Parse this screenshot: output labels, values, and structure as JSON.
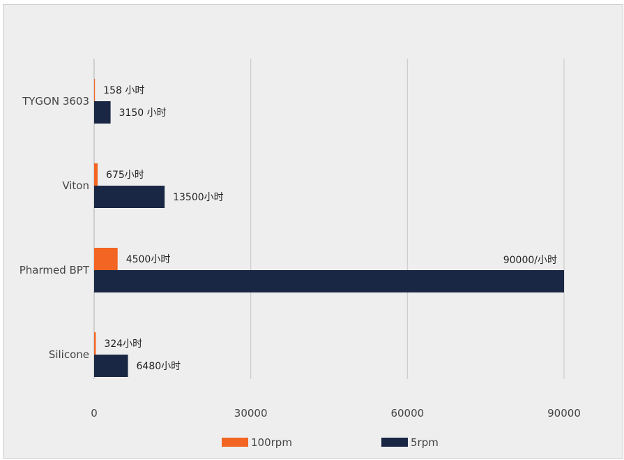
{
  "chart_data": {
    "type": "bar",
    "orientation": "horizontal",
    "categories": [
      "TYGON 3603",
      "Viton",
      "Pharmed BPT",
      "Silicone"
    ],
    "series": [
      {
        "name": "100rpm",
        "color": "#f26522",
        "values": [
          158,
          675,
          4500,
          324
        ],
        "data_labels": [
          "158 小时",
          "675小时",
          "4500小时",
          "324小时"
        ]
      },
      {
        "name": "5rpm",
        "color": "#1a2744",
        "values": [
          3150,
          13500,
          90000,
          6480
        ],
        "data_labels": [
          "3150 小时",
          "13500小时",
          "90000/小时",
          "6480小时"
        ]
      }
    ],
    "xlim": [
      0,
      90000
    ],
    "xticks": [
      "0",
      "30000",
      "60000",
      "90000"
    ],
    "grid": "vertical",
    "legend": "bottom",
    "background": "#eeeeee",
    "gridline_color": "#cccccc"
  }
}
